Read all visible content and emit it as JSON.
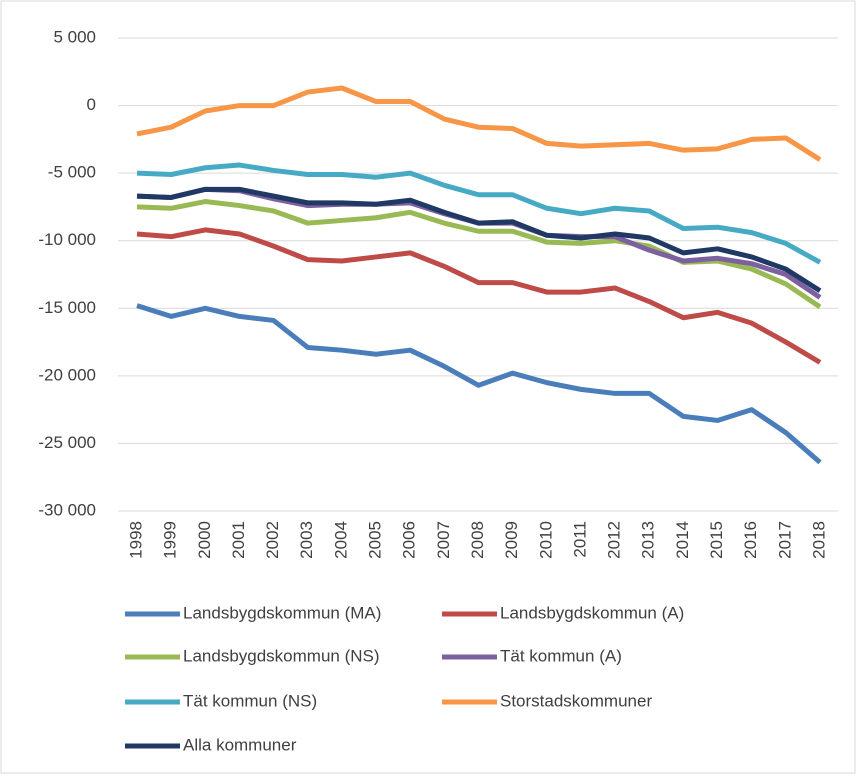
{
  "chart_data": {
    "type": "line",
    "categories": [
      "1998",
      "1999",
      "2000",
      "2001",
      "2002",
      "2003",
      "2004",
      "2005",
      "2006",
      "2007",
      "2008",
      "2009",
      "2010",
      "2011",
      "2012",
      "2013",
      "2014",
      "2015",
      "2016",
      "2017",
      "2018"
    ],
    "series": [
      {
        "name": "Landsbygdskommun (MA)",
        "color": "#4a7ebb",
        "values": [
          -14800,
          -15600,
          -15000,
          -15600,
          -15900,
          -17900,
          -18100,
          -18400,
          -18100,
          -19300,
          -20700,
          -19800,
          -20500,
          -21000,
          -21300,
          -21300,
          -23000,
          -23300,
          -22500,
          -24200,
          -26400
        ]
      },
      {
        "name": "Landsbygdskommun (A)",
        "color": "#be4b48",
        "values": [
          -9500,
          -9700,
          -9200,
          -9500,
          -10400,
          -11400,
          -11500,
          -11200,
          -10900,
          -11900,
          -13100,
          -13100,
          -13800,
          -13800,
          -13500,
          -14500,
          -15700,
          -15300,
          -16100,
          -17500,
          -19000
        ]
      },
      {
        "name": "Landsbygdskommun (NS)",
        "color": "#98b954",
        "values": [
          -7500,
          -7600,
          -7100,
          -7400,
          -7800,
          -8700,
          -8500,
          -8300,
          -7900,
          -8700,
          -9300,
          -9300,
          -10100,
          -10200,
          -10000,
          -10400,
          -11600,
          -11500,
          -12100,
          -13200,
          -14900
        ]
      },
      {
        "name": "Tät kommun (A)",
        "color": "#7d60a0",
        "values": [
          -6700,
          -6800,
          -6200,
          -6300,
          -6900,
          -7400,
          -7300,
          -7300,
          -7200,
          -8000,
          -8700,
          -8700,
          -9600,
          -9700,
          -9700,
          -10700,
          -11500,
          -11300,
          -11700,
          -12500,
          -14200
        ]
      },
      {
        "name": "Tät kommun (NS)",
        "color": "#46aac5",
        "values": [
          -5000,
          -5100,
          -4600,
          -4400,
          -4800,
          -5100,
          -5100,
          -5300,
          -5000,
          -5900,
          -6600,
          -6600,
          -7600,
          -8000,
          -7600,
          -7800,
          -9100,
          -9000,
          -9400,
          -10200,
          -11600
        ]
      },
      {
        "name": "Storstadskommuner",
        "color": "#f79646",
        "values": [
          -2100,
          -1600,
          -400,
          0,
          0,
          1000,
          1300,
          300,
          300,
          -1000,
          -1600,
          -1700,
          -2800,
          -3000,
          -2900,
          -2800,
          -3300,
          -3200,
          -2500,
          -2400,
          -4000
        ]
      },
      {
        "name": "Alla kommuner",
        "color": "#1f3864",
        "values": [
          -6700,
          -6800,
          -6200,
          -6200,
          -6700,
          -7200,
          -7200,
          -7300,
          -7000,
          -7900,
          -8700,
          -8600,
          -9600,
          -9800,
          -9500,
          -9800,
          -10900,
          -10600,
          -11200,
          -12100,
          -13700
        ]
      }
    ],
    "ylim": [
      -30000,
      5000
    ],
    "yticks": [
      {
        "value": -30000,
        "label": "-30 000"
      },
      {
        "value": -25000,
        "label": "-25 000"
      },
      {
        "value": -20000,
        "label": "-20 000"
      },
      {
        "value": -15000,
        "label": "-15 000"
      },
      {
        "value": -10000,
        "label": "-10 000"
      },
      {
        "value": -5000,
        "label": "-5 000"
      },
      0,
      {
        "value": 5000,
        "label": "5 000"
      }
    ],
    "grid": true,
    "legend": "bottom"
  }
}
